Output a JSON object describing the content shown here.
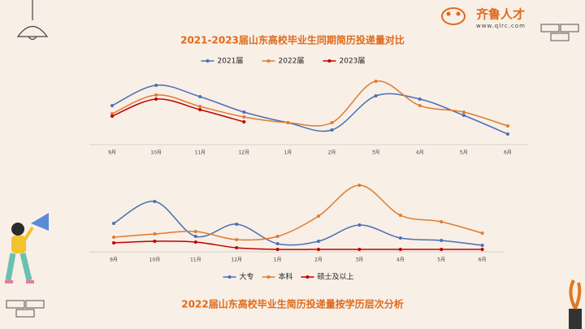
{
  "logo": {
    "name": "齐鲁人才",
    "url": "www.qlrc.com"
  },
  "chart_data": [
    {
      "type": "line",
      "title": "2021-2023届山东高校毕业生同期简历投递量对比",
      "categories": [
        "9月",
        "10月",
        "11月",
        "12月",
        "1月",
        "2月",
        "3月",
        "4月",
        "5月",
        "6月"
      ],
      "ylim": [
        0,
        100
      ],
      "legend": "top",
      "series": [
        {
          "name": "2021届",
          "color": "#4a6fb5",
          "values": [
            48,
            73,
            59,
            40,
            27,
            18,
            60,
            56,
            36,
            13
          ]
        },
        {
          "name": "2022届",
          "color": "#e07b30",
          "values": [
            38,
            61,
            47,
            34,
            27,
            27,
            78,
            48,
            40,
            23
          ]
        },
        {
          "name": "2023届",
          "color": "#c00000",
          "values": [
            35,
            56,
            43,
            28,
            null,
            null,
            null,
            null,
            null,
            null
          ]
        }
      ]
    },
    {
      "type": "line",
      "title": "2022届山东高校毕业生简历投递量按学历层次分析",
      "categories": [
        "9月",
        "10月",
        "11月",
        "12月",
        "1月",
        "2月",
        "3月",
        "4月",
        "5月",
        "6月"
      ],
      "ylim": [
        0,
        100
      ],
      "legend": "bottom",
      "series": [
        {
          "name": "大专",
          "color": "#4a6fb5",
          "values": [
            35,
            62,
            19,
            34,
            10,
            13,
            33,
            17,
            14,
            8
          ]
        },
        {
          "name": "本科",
          "color": "#e07b30",
          "values": [
            18,
            22,
            25,
            15,
            19,
            44,
            82,
            45,
            37,
            23
          ]
        },
        {
          "name": "硕士及以上",
          "color": "#c00000",
          "values": [
            11,
            13,
            12,
            5,
            3,
            3,
            3,
            3,
            3,
            3
          ]
        }
      ]
    }
  ]
}
